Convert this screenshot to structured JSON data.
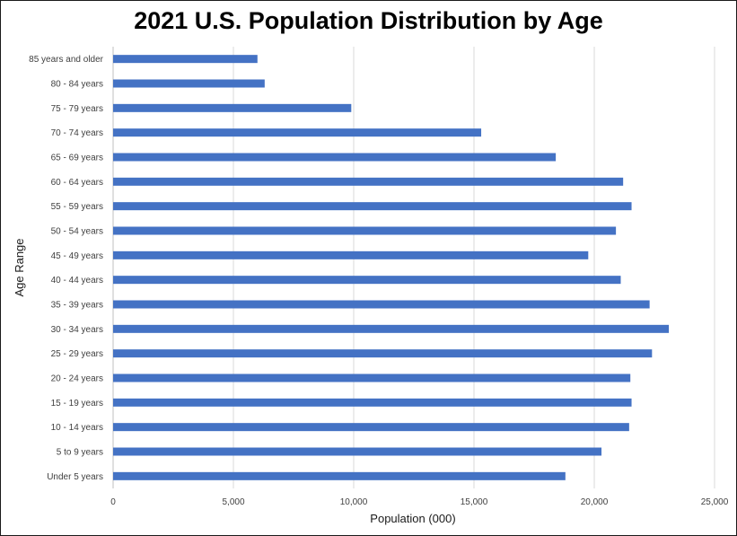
{
  "chart_data": {
    "type": "bar",
    "orientation": "horizontal",
    "title": "2021 U.S. Population Distribution by Age",
    "xlabel": "Population (000)",
    "ylabel": "Age Range",
    "xlim": [
      0,
      25000
    ],
    "x_ticks": [
      0,
      5000,
      10000,
      15000,
      20000,
      25000
    ],
    "x_tick_labels": [
      "0",
      "5,000",
      "10,000",
      "15,000",
      "20,000",
      "25,000"
    ],
    "grid": "vertical",
    "bar_color": "#4472C4",
    "categories": [
      "Under 5 years",
      "5 to 9 years",
      "10 - 14 years",
      "15 - 19 years",
      "20 - 24 years",
      "25 - 29 years",
      "30 - 34 years",
      "35 - 39 years",
      "40 - 44 years",
      "45 - 49 years",
      "50 - 54 years",
      "55 - 59 years",
      "60 - 64 years",
      "65 - 69 years",
      "70 - 74 years",
      "75 - 79 years",
      "80 - 84 years",
      "85 years and older"
    ],
    "values": [
      18800,
      20300,
      21450,
      21550,
      21500,
      22400,
      23100,
      22300,
      21100,
      19750,
      20900,
      21550,
      21200,
      18400,
      15300,
      9900,
      6300,
      6000
    ]
  }
}
